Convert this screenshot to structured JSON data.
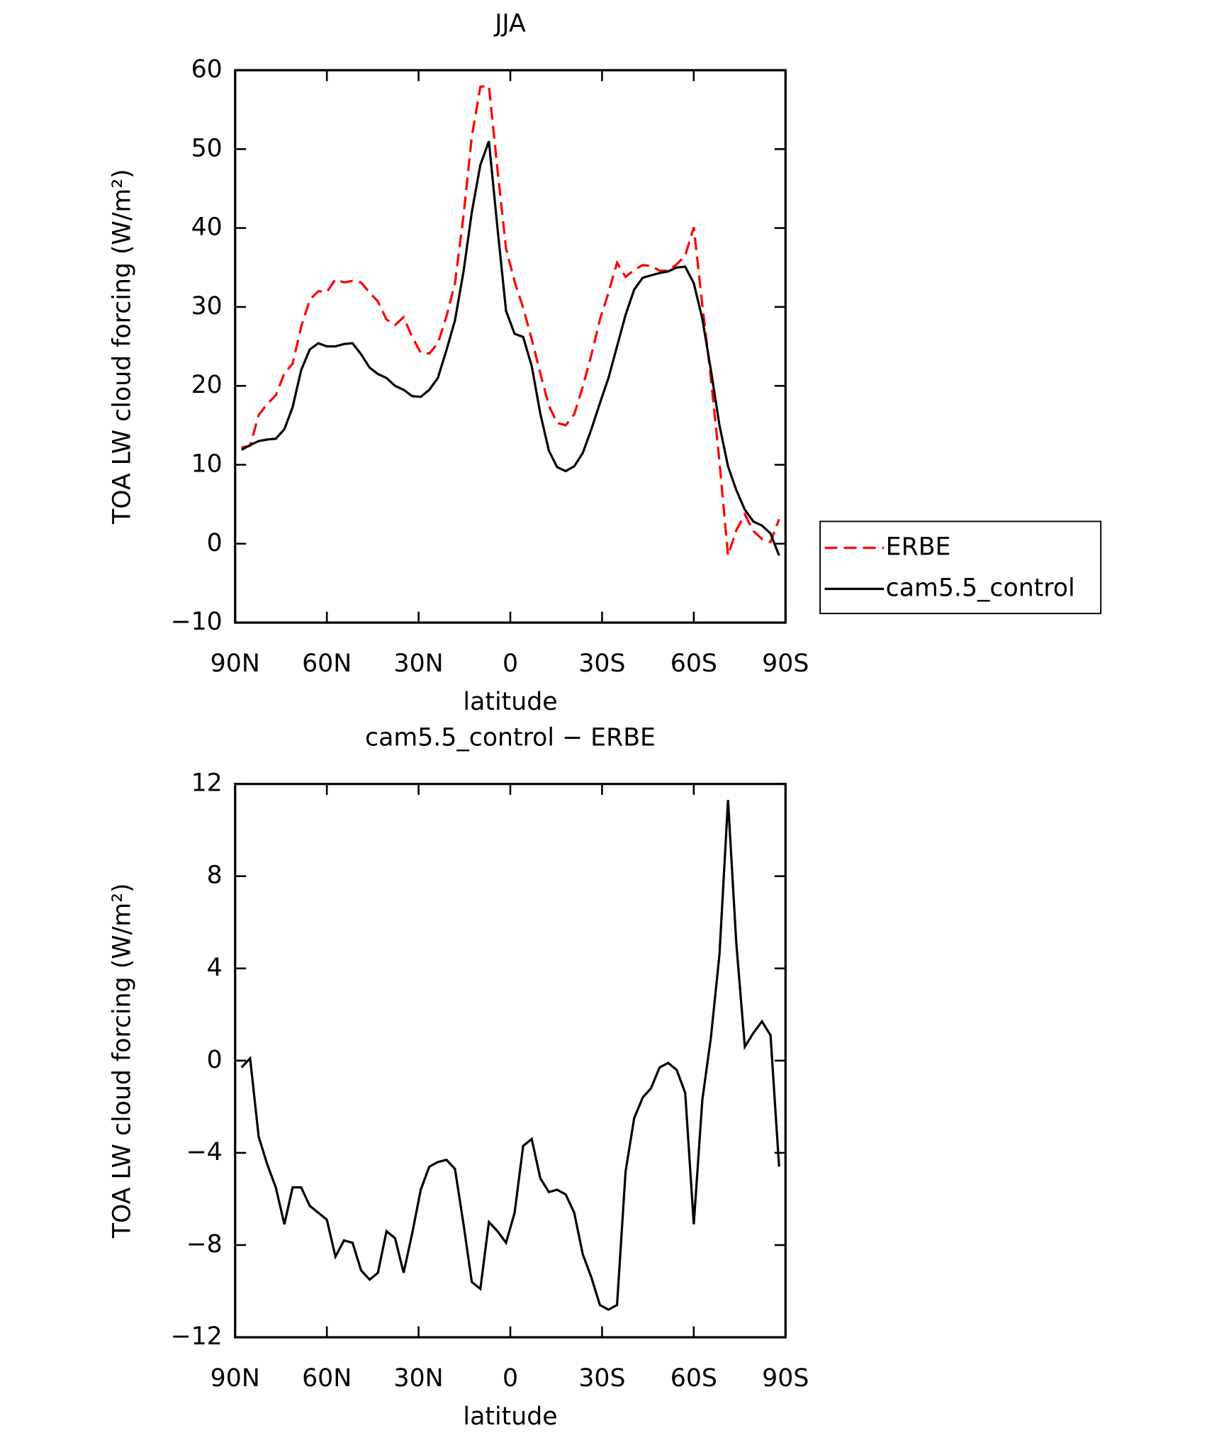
{
  "chart_data": [
    {
      "type": "line",
      "title": "JJA",
      "xlabel": "latitude",
      "ylabel": "TOA LW cloud forcing (W/m²)",
      "x": [
        87.9,
        85.1,
        82.3,
        79.5,
        76.7,
        73.9,
        71.2,
        68.4,
        65.6,
        62.8,
        60.0,
        57.2,
        54.4,
        51.6,
        48.8,
        46.0,
        43.3,
        40.5,
        37.7,
        34.9,
        32.1,
        29.3,
        26.5,
        23.7,
        20.9,
        18.1,
        15.3,
        12.6,
        9.8,
        7.0,
        4.2,
        1.4,
        -1.4,
        -4.2,
        -7.0,
        -9.8,
        -12.6,
        -15.3,
        -18.1,
        -20.9,
        -23.7,
        -26.5,
        -29.3,
        -32.1,
        -34.9,
        -37.7,
        -40.5,
        -43.3,
        -46.0,
        -48.8,
        -51.6,
        -54.4,
        -57.2,
        -60.0,
        -62.8,
        -65.6,
        -68.4,
        -71.2,
        -73.9,
        -76.7,
        -79.5,
        -82.3,
        -85.1,
        -87.9
      ],
      "series": [
        {
          "name": "ERBE",
          "color": "#ff0000",
          "style": "dashed",
          "values": [
            12.2,
            12.4,
            16.3,
            17.7,
            18.8,
            21.6,
            22.8,
            27.5,
            30.9,
            32,
            31.9,
            33.5,
            33.1,
            33.3,
            33.1,
            31.8,
            30.7,
            28.4,
            27.7,
            28.7,
            26.2,
            24.2,
            24.1,
            25.4,
            28.8,
            33,
            41.6,
            51.6,
            57.9,
            58,
            47.4,
            37.4,
            33.2,
            29.9,
            25.9,
            21.6,
            17.5,
            15.3,
            15,
            16.4,
            19.9,
            23.9,
            28.4,
            31.8,
            35.6,
            33.8,
            34.7,
            35.3,
            35.2,
            34.6,
            34.6,
            35.4,
            36.5,
            40.1,
            30.2,
            21,
            10.4,
            -1.5,
            1.7,
            3.7,
            1.6,
            0.6,
            0.2,
            3.1
          ]
        },
        {
          "name": "cam5.5_control",
          "color": "#000000",
          "style": "solid",
          "values": [
            11.9,
            12.5,
            13,
            13.2,
            13.3,
            14.5,
            17.3,
            22,
            24.6,
            25.4,
            25,
            25,
            25.3,
            25.4,
            24,
            22.3,
            21.5,
            21,
            20,
            19.5,
            18.7,
            18.6,
            19.5,
            21,
            24.5,
            28.3,
            34.5,
            42,
            48,
            51,
            40,
            29.5,
            26.6,
            26.2,
            22.5,
            16.5,
            11.8,
            9.7,
            9.2,
            9.8,
            11.5,
            14.5,
            17.8,
            21,
            25,
            29,
            32.2,
            33.7,
            34,
            34.3,
            34.5,
            35,
            35.1,
            33,
            28.5,
            22,
            15,
            9.8,
            6.8,
            4.3,
            2.8,
            2.3,
            1.3,
            -1.5
          ]
        }
      ],
      "xlim": [
        90,
        -90
      ],
      "xticks": [
        {
          "value": 90,
          "label": "90N"
        },
        {
          "value": 60,
          "label": "60N"
        },
        {
          "value": 30,
          "label": "30N"
        },
        0,
        {
          "value": -30,
          "label": "30S"
        },
        {
          "value": -60,
          "label": "60S"
        },
        {
          "value": -90,
          "label": "90S"
        }
      ],
      "ylim": [
        -10,
        60
      ],
      "yticks": [
        {
          "value": -10,
          "label": "−10"
        },
        0,
        10,
        20,
        30,
        40,
        50,
        60
      ],
      "legend": "right"
    },
    {
      "type": "line",
      "title": "cam5.5_control − ERBE",
      "xlabel": "latitude",
      "ylabel": "TOA LW cloud forcing (W/m²)",
      "x": [
        87.9,
        85.1,
        82.3,
        79.5,
        76.7,
        73.9,
        71.2,
        68.4,
        65.6,
        62.8,
        60.0,
        57.2,
        54.4,
        51.6,
        48.8,
        46.0,
        43.3,
        40.5,
        37.7,
        34.9,
        32.1,
        29.3,
        26.5,
        23.7,
        20.9,
        18.1,
        15.3,
        12.6,
        9.8,
        7.0,
        4.2,
        1.4,
        -1.4,
        -4.2,
        -7.0,
        -9.8,
        -12.6,
        -15.3,
        -18.1,
        -20.9,
        -23.7,
        -26.5,
        -29.3,
        -32.1,
        -34.9,
        -37.7,
        -40.5,
        -43.3,
        -46.0,
        -48.8,
        -51.6,
        -54.4,
        -57.2,
        -60.0,
        -62.8,
        -65.6,
        -68.4,
        -71.2,
        -73.9,
        -76.7,
        -79.5,
        -82.3,
        -85.1,
        -87.9
      ],
      "series": [
        {
          "color": "#000000",
          "style": "solid",
          "values": [
            -0.3,
            0.1,
            -3.3,
            -4.5,
            -5.5,
            -7.1,
            -5.5,
            -5.5,
            -6.3,
            -6.6,
            -6.9,
            -8.5,
            -7.8,
            -7.9,
            -9.1,
            -9.5,
            -9.2,
            -7.4,
            -7.7,
            -9.2,
            -7.5,
            -5.6,
            -4.6,
            -4.4,
            -4.3,
            -4.7,
            -7.1,
            -9.6,
            -9.9,
            -7.0,
            -7.4,
            -7.9,
            -6.6,
            -3.7,
            -3.4,
            -5.1,
            -5.7,
            -5.6,
            -5.8,
            -6.6,
            -8.4,
            -9.4,
            -10.6,
            -10.8,
            -10.6,
            -4.8,
            -2.5,
            -1.6,
            -1.2,
            -0.3,
            -0.1,
            -0.4,
            -1.4,
            -7.1,
            -1.7,
            1.0,
            4.6,
            11.3,
            5.1,
            0.6,
            1.2,
            1.7,
            1.1,
            -4.6
          ]
        }
      ],
      "xlim": [
        90,
        -90
      ],
      "xticks": [
        {
          "value": 90,
          "label": "90N"
        },
        {
          "value": 60,
          "label": "60N"
        },
        {
          "value": 30,
          "label": "30N"
        },
        0,
        {
          "value": -30,
          "label": "30S"
        },
        {
          "value": -60,
          "label": "60S"
        },
        {
          "value": -90,
          "label": "90S"
        }
      ],
      "ylim": [
        -12,
        12
      ],
      "yticks": [
        {
          "value": -12,
          "label": "−12"
        },
        {
          "value": -8,
          "label": "−8"
        },
        {
          "value": -4,
          "label": "−4"
        },
        0,
        4,
        8,
        12
      ]
    }
  ]
}
